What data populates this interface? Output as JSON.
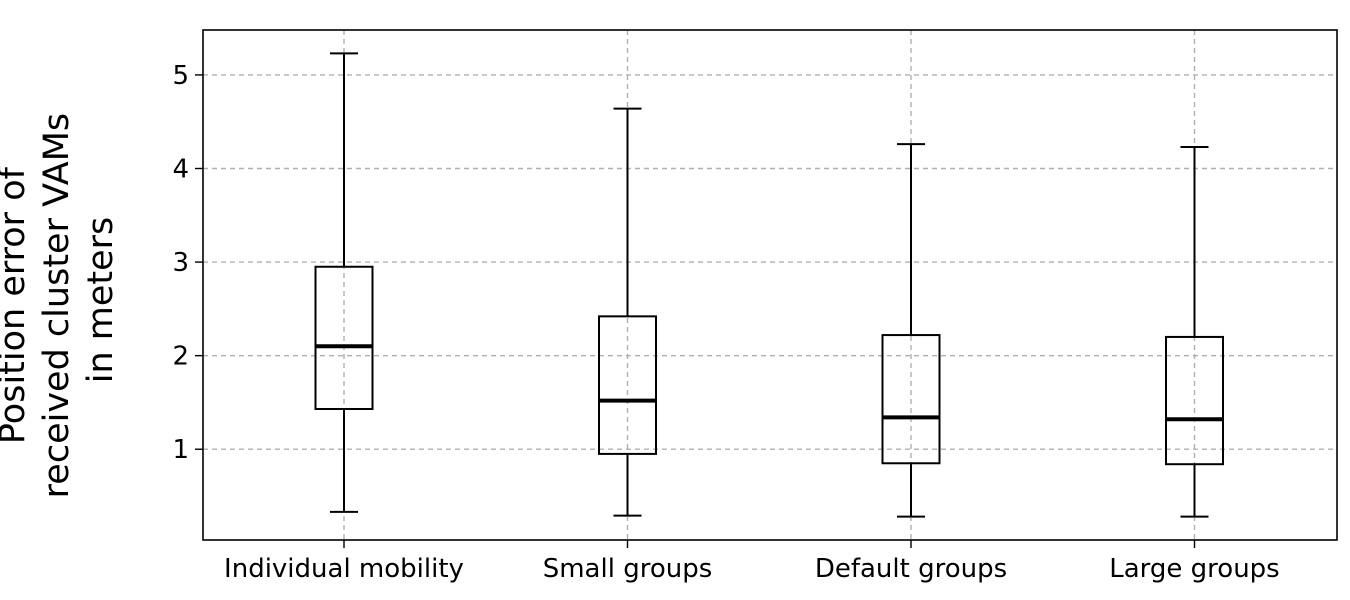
{
  "chart_data": {
    "type": "boxplot",
    "title": "",
    "xlabel": "",
    "ylabel_lines": [
      "Position error of",
      "received cluster VAMs",
      "in meters"
    ],
    "categories": [
      "Individual mobility",
      "Small groups",
      "Default groups",
      "Large groups"
    ],
    "boxes": [
      {
        "whisker_low": 0.33,
        "q1": 1.43,
        "median": 2.1,
        "q3": 2.95,
        "whisker_high": 5.23
      },
      {
        "whisker_low": 0.29,
        "q1": 0.95,
        "median": 1.52,
        "q3": 2.42,
        "whisker_high": 4.64
      },
      {
        "whisker_low": 0.28,
        "q1": 0.85,
        "median": 1.34,
        "q3": 2.22,
        "whisker_high": 4.26
      },
      {
        "whisker_low": 0.28,
        "q1": 0.84,
        "median": 1.32,
        "q3": 2.2,
        "whisker_high": 4.23
      }
    ],
    "ylim": [
      0.03,
      5.48
    ],
    "yticks": [
      1,
      2,
      3,
      4,
      5
    ],
    "grid": true,
    "colors": {
      "box": "#000000",
      "grid": "#b0b0b0",
      "median": "#000000"
    }
  }
}
